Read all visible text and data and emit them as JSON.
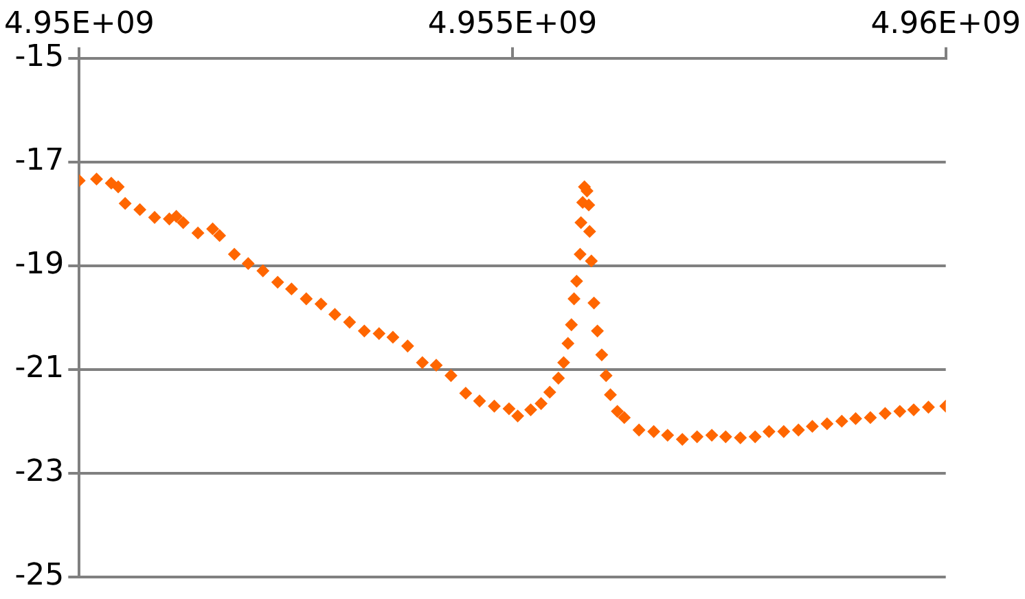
{
  "chart_data": {
    "type": "scatter",
    "xlim": [
      4950000000,
      4960000000
    ],
    "xticks": [
      {
        "value": 4950000000,
        "label": "4.95E+09"
      },
      {
        "value": 4955000000,
        "label": "4.955E+09"
      },
      {
        "value": 4960000000,
        "label": "4.96E+09"
      }
    ],
    "ylim": [
      -25,
      -15
    ],
    "yticks": [
      -25,
      -23,
      -21,
      -19,
      -17,
      -15
    ],
    "grid": "y",
    "legend": false,
    "marker": "diamond",
    "series": [
      {
        "color": "#ff6600",
        "x": [
          4950000000,
          4950200000,
          4950370000,
          4950450000,
          4950530000,
          4950700000,
          4950870000,
          4951040000,
          4951120000,
          4951200000,
          4951370000,
          4951540000,
          4951620000,
          4951790000,
          4951950000,
          4952120000,
          4952290000,
          4952450000,
          4952620000,
          4952790000,
          4952950000,
          4953120000,
          4953290000,
          4953460000,
          4953620000,
          4953790000,
          4953960000,
          4954120000,
          4954290000,
          4954460000,
          4954620000,
          4954790000,
          4954960000,
          4955060000,
          4955210000,
          4955330000,
          4955430000,
          4955530000,
          4955590000,
          4955640000,
          4955680000,
          4955710000,
          4955740000,
          4955780000,
          4955790000,
          4955810000,
          4955830000,
          4955860000,
          4955880000,
          4955890000,
          4955910000,
          4955940000,
          4955980000,
          4956030000,
          4956080000,
          4956130000,
          4956210000,
          4956290000,
          4956460000,
          4956630000,
          4956790000,
          4956960000,
          4957130000,
          4957300000,
          4957460000,
          4957630000,
          4957800000,
          4957960000,
          4958130000,
          4958300000,
          4958460000,
          4958630000,
          4958800000,
          4958960000,
          4959130000,
          4959300000,
          4959470000,
          4959630000,
          4959800000,
          4960000000
        ],
        "values": [
          -17.36,
          -17.33,
          -17.41,
          -17.48,
          -17.8,
          -17.92,
          -18.07,
          -18.1,
          -18.05,
          -18.17,
          -18.37,
          -18.29,
          -18.42,
          -18.78,
          -18.96,
          -19.1,
          -19.32,
          -19.45,
          -19.64,
          -19.74,
          -19.94,
          -20.09,
          -20.26,
          -20.31,
          -20.38,
          -20.55,
          -20.87,
          -20.92,
          -21.12,
          -21.46,
          -21.61,
          -21.71,
          -21.76,
          -21.9,
          -21.78,
          -21.66,
          -21.44,
          -21.17,
          -20.87,
          -20.5,
          -20.14,
          -19.64,
          -19.3,
          -18.78,
          -18.17,
          -17.78,
          -17.48,
          -17.56,
          -17.83,
          -18.34,
          -18.91,
          -19.72,
          -20.26,
          -20.72,
          -21.12,
          -21.49,
          -21.81,
          -21.93,
          -22.17,
          -22.2,
          -22.27,
          -22.35,
          -22.3,
          -22.27,
          -22.3,
          -22.32,
          -22.3,
          -22.2,
          -22.2,
          -22.17,
          -22.1,
          -22.05,
          -22,
          -21.95,
          -21.93,
          -21.85,
          -21.81,
          -21.78,
          -21.73,
          -21.71
        ]
      }
    ]
  }
}
